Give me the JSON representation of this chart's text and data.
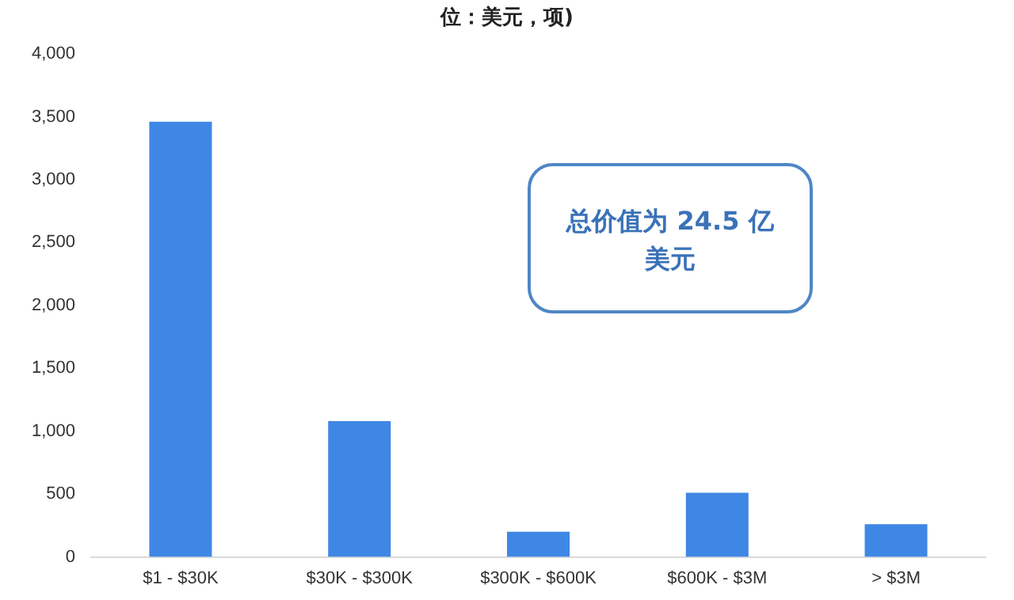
{
  "chart_data": {
    "type": "bar",
    "title": "位：美元，项)",
    "categories": [
      "$1 - $30K",
      "$30K - $300K",
      "$300K - $600K",
      "$600K - $3M",
      "> $3M"
    ],
    "values": [
      3460,
      1080,
      200,
      510,
      260
    ],
    "color": "#3f87e5",
    "ylim": [
      0,
      4000
    ],
    "yticks": [
      0,
      500,
      {
        "value": 1000,
        "label": "1,000"
      },
      {
        "value": 1500,
        "label": "1,500"
      },
      {
        "value": 2000,
        "label": "2,000"
      },
      {
        "value": 2500,
        "label": "2,500"
      },
      {
        "value": 3000,
        "label": "3,000"
      },
      {
        "value": 3500,
        "label": "3,500"
      },
      {
        "value": 4000,
        "label": "4,000"
      }
    ],
    "grid": false,
    "legend": false,
    "annotations": [
      "总价值为 24.5 亿美元"
    ]
  }
}
